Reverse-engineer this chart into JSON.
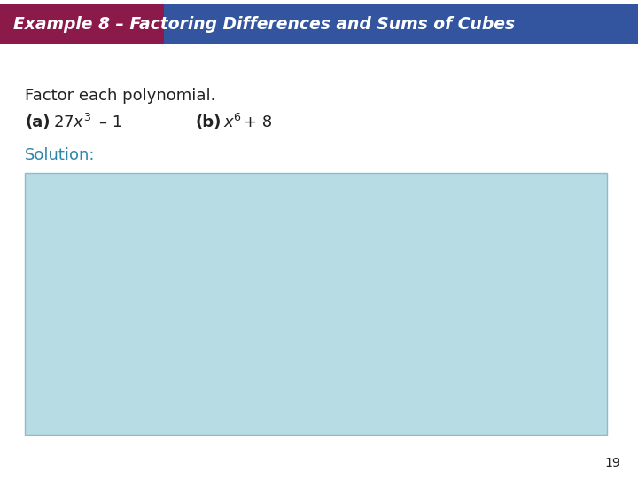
{
  "title": "Example 8 – Factoring Differences and Sums of Cubes",
  "title_bg_left_color": "#8B1A4A",
  "title_bg_right_color": "#3355A0",
  "title_text_color": "#FFFFFF",
  "bg_color": "#FFFFFF",
  "body_text_color": "#222222",
  "solution_text_color": "#2E86AB",
  "solution_box_color": "#B8DCE4",
  "solution_box_border": "#8BBCCC",
  "page_number": "19",
  "line1": "Factor each polynomial.",
  "font_size_title": 13.5,
  "font_size_body": 13,
  "font_size_page": 10
}
